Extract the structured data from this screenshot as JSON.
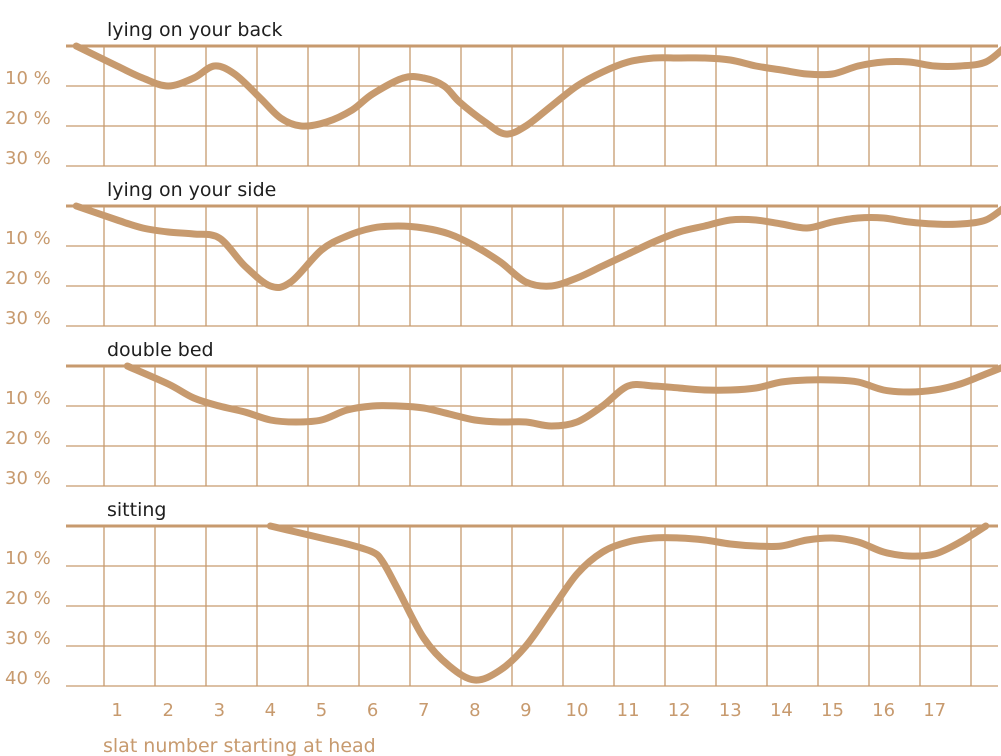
{
  "chart_data": [
    {
      "type": "line",
      "title": "lying on your back",
      "ylim": [
        0,
        30
      ],
      "yticks": [
        "10 %",
        "20 %",
        "30 %"
      ],
      "x": [
        0.2,
        1,
        1.5,
        2,
        2.5,
        2.9,
        3.3,
        3.8,
        4.2,
        4.6,
        5.1,
        5.6,
        6,
        6.6,
        7,
        7.4,
        7.7,
        8.2,
        8.6,
        9,
        9.5,
        10,
        10.5,
        11,
        11.5,
        12,
        12.5,
        13,
        13.5,
        14,
        14.5,
        15,
        15.5,
        16,
        16.5,
        17,
        17.5,
        18,
        18.4
      ],
      "values": [
        0,
        5,
        8,
        10,
        8,
        5,
        7,
        13,
        18,
        20,
        19,
        16,
        12,
        8,
        8,
        10,
        14,
        19,
        22,
        20,
        15,
        10,
        6.5,
        4,
        3,
        3,
        3,
        3.5,
        5,
        6,
        7,
        7,
        5,
        4,
        4,
        5,
        5,
        4,
        0
      ]
    },
    {
      "type": "line",
      "title": "lying on your side",
      "ylim": [
        0,
        30
      ],
      "yticks": [
        "10 %",
        "20 %",
        "30 %"
      ],
      "x": [
        0.2,
        1,
        1.5,
        2,
        2.5,
        3,
        3.5,
        4,
        4.4,
        5,
        5.5,
        6,
        6.5,
        7,
        7.5,
        8,
        8.5,
        9,
        9.5,
        10,
        10.5,
        11,
        11.5,
        12,
        12.5,
        13,
        13.5,
        14,
        14.5,
        15,
        15.5,
        16,
        16.5,
        17,
        17.5,
        18,
        18.4
      ],
      "values": [
        0,
        3.5,
        5.5,
        6.5,
        7,
        8,
        15,
        20,
        19,
        11,
        7.5,
        5.5,
        5,
        5.5,
        7,
        10,
        14,
        19,
        20,
        18,
        15,
        12,
        9,
        6.5,
        5,
        3.5,
        3.5,
        4.5,
        5.5,
        4,
        3,
        3,
        4,
        4.5,
        4.5,
        3.5,
        0
      ]
    },
    {
      "type": "line",
      "title": "double bed",
      "ylim": [
        0,
        30
      ],
      "yticks": [
        "10 %",
        "20 %",
        "30 %"
      ],
      "x": [
        1.2,
        2,
        2.5,
        3,
        3.5,
        4,
        4.5,
        5,
        5.5,
        6,
        6.5,
        7,
        7.5,
        8,
        8.5,
        9,
        9.5,
        10,
        10.5,
        11,
        11.5,
        12,
        12.5,
        13,
        13.5,
        14,
        14.5,
        15,
        15.5,
        16,
        16.5,
        17,
        17.5,
        18,
        18.4
      ],
      "values": [
        0,
        4.5,
        8,
        10,
        11.5,
        13.5,
        14,
        13.5,
        11,
        10,
        10,
        10.5,
        12,
        13.5,
        14,
        14,
        15,
        14,
        10,
        5,
        5,
        5.5,
        6,
        6,
        5.5,
        4,
        3.5,
        3.5,
        4,
        6,
        6.5,
        6,
        4.5,
        2,
        0
      ]
    },
    {
      "type": "line",
      "title": "sitting",
      "ylim": [
        0,
        40
      ],
      "yticks": [
        "10 %",
        "20 %",
        "30 %",
        "40 %"
      ],
      "x": [
        4,
        4.5,
        5,
        5.5,
        6,
        6.2,
        6.5,
        7,
        7.5,
        8,
        8.5,
        9,
        9.5,
        10,
        10.5,
        11,
        11.5,
        12,
        12.5,
        13,
        13.5,
        14,
        14.5,
        15,
        15.5,
        16,
        16.5,
        17,
        17.5,
        18
      ],
      "values": [
        0,
        1.5,
        3,
        4.5,
        6.5,
        9,
        16,
        28,
        35,
        38.5,
        36,
        30,
        21,
        12,
        6.5,
        4,
        3,
        3,
        3.5,
        4.5,
        5,
        5,
        3.5,
        3,
        4,
        6.5,
        7.5,
        7,
        4,
        0
      ]
    }
  ],
  "x_axis": {
    "ticks": [
      "1",
      "2",
      "3",
      "4",
      "5",
      "6",
      "7",
      "8",
      "9",
      "10",
      "11",
      "12",
      "13",
      "14",
      "15",
      "16",
      "17"
    ],
    "label": "slat number starting at head"
  },
  "colors": {
    "line": "#c79a6e",
    "grid": "#c79a6e",
    "title": "#1e1e1e"
  }
}
